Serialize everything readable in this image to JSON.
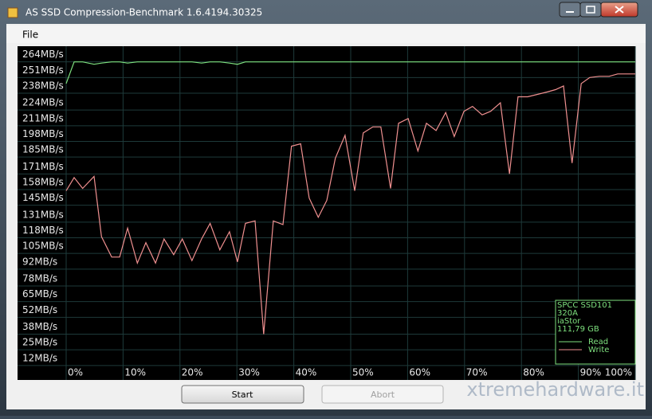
{
  "window": {
    "title": "AS SSD Compression-Benchmark 1.6.4194.30325",
    "menu": [
      "File"
    ]
  },
  "chart_data": {
    "type": "line",
    "x": [
      0,
      1.4,
      2.9,
      4.9,
      6.2,
      8.0,
      9.4,
      10.8,
      12.5,
      14.0,
      15.7,
      17.2,
      18.9,
      20.4,
      22.1,
      23.8,
      25.3,
      27.0,
      28.7,
      30.1,
      31.5,
      33.2,
      34.7,
      36.4,
      38.1,
      39.6,
      41.2,
      42.7,
      44.3,
      45.8,
      47.3,
      49.0,
      50.7,
      52.2,
      53.9,
      55.3,
      57.0,
      58.4,
      60.1,
      61.8,
      63.3,
      65.0,
      66.7,
      68.2,
      69.9,
      71.4,
      73.1,
      74.6,
      76.3,
      77.9,
      79.4,
      81.1,
      82.8,
      84.5,
      86.0,
      87.4,
      88.9,
      90.5,
      92.0,
      93.7,
      95.4,
      96.9,
      98.5,
      100
    ],
    "series": [
      {
        "name": "Read",
        "color": "#7ee07e",
        "values": [
          246,
          264,
          264,
          262,
          263,
          264,
          264,
          263,
          264,
          264,
          264,
          264,
          264,
          264,
          264,
          263,
          264,
          264,
          263,
          262,
          264,
          264,
          264,
          264,
          264,
          264,
          264,
          264,
          264,
          264,
          264,
          264,
          264,
          264,
          264,
          264,
          264,
          264,
          264,
          264,
          264,
          264,
          264,
          264,
          264,
          264,
          264,
          264,
          264,
          264,
          264,
          264,
          264,
          264,
          264,
          264,
          264,
          264,
          264,
          264,
          264,
          264,
          264,
          264
        ]
      },
      {
        "name": "Write",
        "color": "#f09090",
        "values": [
          157,
          168,
          159,
          169,
          119,
          102,
          102,
          126,
          97,
          114,
          97,
          117,
          104,
          117,
          99,
          117,
          130,
          108,
          123,
          98,
          130,
          132,
          38,
          132,
          129,
          194,
          196,
          151,
          135,
          149,
          184,
          203,
          157,
          205,
          210,
          210,
          159,
          213,
          217,
          190,
          213,
          207,
          222,
          202,
          223,
          227,
          220,
          223,
          230,
          171,
          235,
          235,
          237,
          239,
          241,
          244,
          180,
          246,
          251,
          252,
          252,
          254,
          254,
          254
        ]
      }
    ],
    "xlim": [
      0,
      100
    ],
    "xticks": [
      {
        "value": 0,
        "label": "0%"
      },
      {
        "value": 10,
        "label": "10%"
      },
      {
        "value": 20,
        "label": "20%"
      },
      {
        "value": 30,
        "label": "30%"
      },
      {
        "value": 40,
        "label": "40%"
      },
      {
        "value": 50,
        "label": "50%"
      },
      {
        "value": 60,
        "label": "60%"
      },
      {
        "value": 70,
        "label": "70%"
      },
      {
        "value": 80,
        "label": "80%"
      },
      {
        "value": 90,
        "label": "90%"
      },
      {
        "value": 100,
        "label": "100%"
      }
    ],
    "ylim": [
      0,
      277
    ],
    "yticks": [
      {
        "value": 264,
        "label": "264MB/s"
      },
      {
        "value": 251,
        "label": "251MB/s"
      },
      {
        "value": 238,
        "label": "238MB/s"
      },
      {
        "value": 224,
        "label": "224MB/s"
      },
      {
        "value": 211,
        "label": "211MB/s"
      },
      {
        "value": 198,
        "label": "198MB/s"
      },
      {
        "value": 185,
        "label": "185MB/s"
      },
      {
        "value": 171,
        "label": "171MB/s"
      },
      {
        "value": 158,
        "label": "158MB/s"
      },
      {
        "value": 145,
        "label": "145MB/s"
      },
      {
        "value": 131,
        "label": "131MB/s"
      },
      {
        "value": 118,
        "label": "118MB/s"
      },
      {
        "value": 105,
        "label": "105MB/s"
      },
      {
        "value": 92,
        "label": "92MB/s"
      },
      {
        "value": 78,
        "label": "78MB/s"
      },
      {
        "value": 65,
        "label": "65MB/s"
      },
      {
        "value": 52,
        "label": "52MB/s"
      },
      {
        "value": 38,
        "label": "38MB/s"
      },
      {
        "value": 25,
        "label": "25MB/s"
      },
      {
        "value": 12,
        "label": "12MB/s"
      }
    ],
    "grid": true,
    "legend": "bottom-right",
    "info": [
      "SPCC SSD101",
      "320A",
      "iaStor",
      "111,79 GB"
    ]
  },
  "buttons": [
    "Start",
    "Abort"
  ],
  "watermark": "xtremehardware.it"
}
